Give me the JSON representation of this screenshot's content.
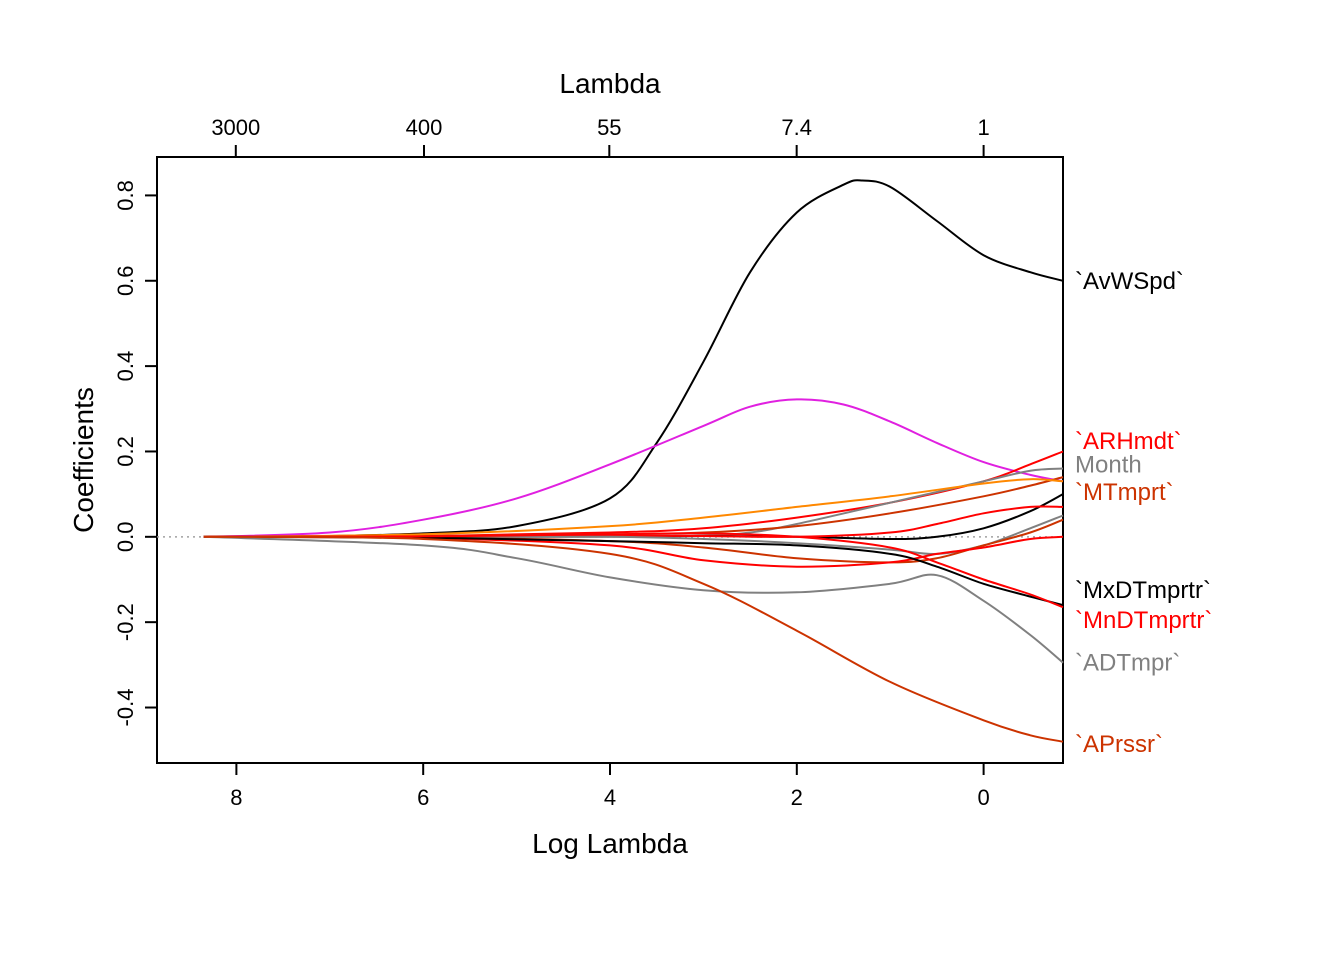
{
  "chart_data": {
    "type": "line",
    "title": "",
    "xlabel": "Log Lambda",
    "ylabel": "Coefficients",
    "top_axis_label": "Lambda",
    "xlim": [
      -0.85,
      8.85
    ],
    "ylim": [
      -0.53,
      0.89
    ],
    "x_ticks": [
      8,
      6,
      4,
      2,
      0
    ],
    "x_tick_labels": [
      "8",
      "6",
      "4",
      "2",
      "0"
    ],
    "top_ticks": [
      3000,
      400,
      55,
      7.4,
      1
    ],
    "top_tick_labels": [
      "3000",
      "400",
      "55",
      "7.4",
      "1"
    ],
    "y_ticks": [
      -0.4,
      -0.2,
      0.0,
      0.2,
      0.4,
      0.6,
      0.8
    ],
    "y_tick_labels": [
      "-0.4",
      "-0.2",
      "0.0",
      "0.2",
      "0.4",
      "0.6",
      "0.8"
    ],
    "zero_line": true,
    "grid": false,
    "series": [
      {
        "name": "`AvWSpd`",
        "color": "#000000",
        "labeled": true,
        "label_y": 0.6,
        "points": [
          [
            8.35,
            0
          ],
          [
            7,
            0.002
          ],
          [
            6,
            0.008
          ],
          [
            5,
            0.025
          ],
          [
            4,
            0.09
          ],
          [
            3.5,
            0.22
          ],
          [
            3,
            0.41
          ],
          [
            2.5,
            0.62
          ],
          [
            2,
            0.76
          ],
          [
            1.5,
            0.825
          ],
          [
            1.3,
            0.835
          ],
          [
            1,
            0.82
          ],
          [
            0.5,
            0.74
          ],
          [
            0,
            0.66
          ],
          [
            -0.5,
            0.62
          ],
          [
            -0.85,
            0.6
          ]
        ]
      },
      {
        "name": "",
        "color": "#e020e0",
        "labeled": false,
        "points": [
          [
            8.35,
            0
          ],
          [
            7,
            0.01
          ],
          [
            6,
            0.04
          ],
          [
            5,
            0.09
          ],
          [
            4,
            0.17
          ],
          [
            3,
            0.26
          ],
          [
            2.5,
            0.305
          ],
          [
            2,
            0.322
          ],
          [
            1.5,
            0.31
          ],
          [
            1,
            0.27
          ],
          [
            0.5,
            0.22
          ],
          [
            0,
            0.175
          ],
          [
            -0.5,
            0.145
          ],
          [
            -0.85,
            0.13
          ]
        ]
      },
      {
        "name": "`ARHmdt`",
        "color": "#ff0000",
        "labeled": true,
        "label_y": 0.225,
        "points": [
          [
            8.35,
            0
          ],
          [
            6,
            0.002
          ],
          [
            4,
            0.01
          ],
          [
            3,
            0.02
          ],
          [
            2,
            0.045
          ],
          [
            1,
            0.08
          ],
          [
            0,
            0.13
          ],
          [
            -0.5,
            0.17
          ],
          [
            -0.85,
            0.2
          ]
        ]
      },
      {
        "name": "Month",
        "color": "#808080",
        "labeled": true,
        "label_y": 0.17,
        "points": [
          [
            8.35,
            0
          ],
          [
            4,
            0.0
          ],
          [
            3,
            0.003
          ],
          [
            2.5,
            0.01
          ],
          [
            2,
            0.03
          ],
          [
            1,
            0.08
          ],
          [
            0,
            0.13
          ],
          [
            -0.5,
            0.155
          ],
          [
            -0.85,
            0.16
          ]
        ]
      },
      {
        "name": "`MTmprt`",
        "color": "#cc3300",
        "labeled": true,
        "label_y": 0.105,
        "points": [
          [
            8.35,
            0
          ],
          [
            6,
            0.002
          ],
          [
            4,
            0.006
          ],
          [
            3,
            0.01
          ],
          [
            2,
            0.025
          ],
          [
            1,
            0.055
          ],
          [
            0,
            0.095
          ],
          [
            -0.5,
            0.12
          ],
          [
            -0.85,
            0.14
          ]
        ]
      },
      {
        "name": "",
        "color": "#ff8800",
        "labeled": false,
        "points": [
          [
            8.35,
            0
          ],
          [
            6,
            0.006
          ],
          [
            4,
            0.025
          ],
          [
            3,
            0.045
          ],
          [
            2,
            0.07
          ],
          [
            1,
            0.095
          ],
          [
            0,
            0.125
          ],
          [
            -0.5,
            0.135
          ],
          [
            -0.85,
            0.13
          ]
        ]
      },
      {
        "name": "",
        "color": "#000000",
        "labeled": false,
        "points": [
          [
            8.35,
            0
          ],
          [
            6,
            0.0
          ],
          [
            4,
            0.002
          ],
          [
            3,
            0.002
          ],
          [
            2,
            0.0
          ],
          [
            1,
            -0.005
          ],
          [
            0.5,
            0.0
          ],
          [
            0,
            0.02
          ],
          [
            -0.5,
            0.06
          ],
          [
            -0.85,
            0.1
          ]
        ]
      },
      {
        "name": "",
        "color": "#ff0000",
        "labeled": false,
        "points": [
          [
            8.35,
            0
          ],
          [
            6,
            0.0
          ],
          [
            4,
            0.002
          ],
          [
            3,
            0.002
          ],
          [
            2,
            0.0
          ],
          [
            1,
            0.01
          ],
          [
            0.5,
            0.03
          ],
          [
            0,
            0.055
          ],
          [
            -0.5,
            0.07
          ],
          [
            -0.85,
            0.07
          ]
        ]
      },
      {
        "name": "",
        "color": "#808080",
        "labeled": false,
        "points": [
          [
            8.35,
            0
          ],
          [
            6,
            0.0
          ],
          [
            4,
            0.0
          ],
          [
            3,
            -0.005
          ],
          [
            2,
            -0.015
          ],
          [
            1,
            -0.03
          ],
          [
            0.5,
            -0.04
          ],
          [
            0,
            -0.02
          ],
          [
            -0.5,
            0.02
          ],
          [
            -0.85,
            0.05
          ]
        ]
      },
      {
        "name": "",
        "color": "#cc3300",
        "labeled": false,
        "points": [
          [
            8.35,
            0
          ],
          [
            6,
            -0.002
          ],
          [
            4,
            -0.01
          ],
          [
            3,
            -0.025
          ],
          [
            2,
            -0.05
          ],
          [
            1,
            -0.06
          ],
          [
            0.5,
            -0.05
          ],
          [
            0,
            -0.02
          ],
          [
            -0.5,
            0.01
          ],
          [
            -0.85,
            0.04
          ]
        ]
      },
      {
        "name": "",
        "color": "#ff0000",
        "labeled": false,
        "points": [
          [
            8.35,
            0
          ],
          [
            6,
            -0.003
          ],
          [
            4,
            -0.02
          ],
          [
            3,
            -0.055
          ],
          [
            2,
            -0.07
          ],
          [
            1,
            -0.06
          ],
          [
            0.5,
            -0.04
          ],
          [
            0,
            -0.025
          ],
          [
            -0.5,
            -0.005
          ],
          [
            -0.85,
            0.0
          ]
        ]
      },
      {
        "name": "`MxDTmprtr`",
        "color": "#000000",
        "labeled": true,
        "label_y": -0.125,
        "points": [
          [
            8.35,
            0
          ],
          [
            6,
            -0.002
          ],
          [
            4,
            -0.01
          ],
          [
            3,
            -0.015
          ],
          [
            2,
            -0.02
          ],
          [
            1,
            -0.04
          ],
          [
            0.5,
            -0.07
          ],
          [
            0,
            -0.11
          ],
          [
            -0.5,
            -0.14
          ],
          [
            -0.85,
            -0.16
          ]
        ]
      },
      {
        "name": "`MnDTmprtr`",
        "color": "#ff0000",
        "labeled": true,
        "label_y": -0.195,
        "points": [
          [
            8.35,
            0
          ],
          [
            6,
            0.001
          ],
          [
            4,
            0.006
          ],
          [
            3,
            0.008
          ],
          [
            2,
            0.0
          ],
          [
            1,
            -0.025
          ],
          [
            0.5,
            -0.06
          ],
          [
            0,
            -0.1
          ],
          [
            -0.5,
            -0.135
          ],
          [
            -0.85,
            -0.165
          ]
        ]
      },
      {
        "name": "`ADTmpr`",
        "color": "#808080",
        "labeled": true,
        "label_y": -0.295,
        "points": [
          [
            8.35,
            0
          ],
          [
            6,
            -0.02
          ],
          [
            5,
            -0.05
          ],
          [
            4,
            -0.095
          ],
          [
            3,
            -0.125
          ],
          [
            2,
            -0.13
          ],
          [
            1,
            -0.11
          ],
          [
            0.5,
            -0.09
          ],
          [
            0,
            -0.15
          ],
          [
            -0.5,
            -0.23
          ],
          [
            -0.85,
            -0.295
          ]
        ]
      },
      {
        "name": "`APrssr`",
        "color": "#cc3300",
        "labeled": true,
        "label_y": -0.485,
        "points": [
          [
            8.35,
            0
          ],
          [
            6,
            -0.005
          ],
          [
            4,
            -0.04
          ],
          [
            3,
            -0.11
          ],
          [
            2,
            -0.22
          ],
          [
            1,
            -0.34
          ],
          [
            0,
            -0.43
          ],
          [
            -0.5,
            -0.465
          ],
          [
            -0.85,
            -0.48
          ]
        ]
      }
    ]
  }
}
